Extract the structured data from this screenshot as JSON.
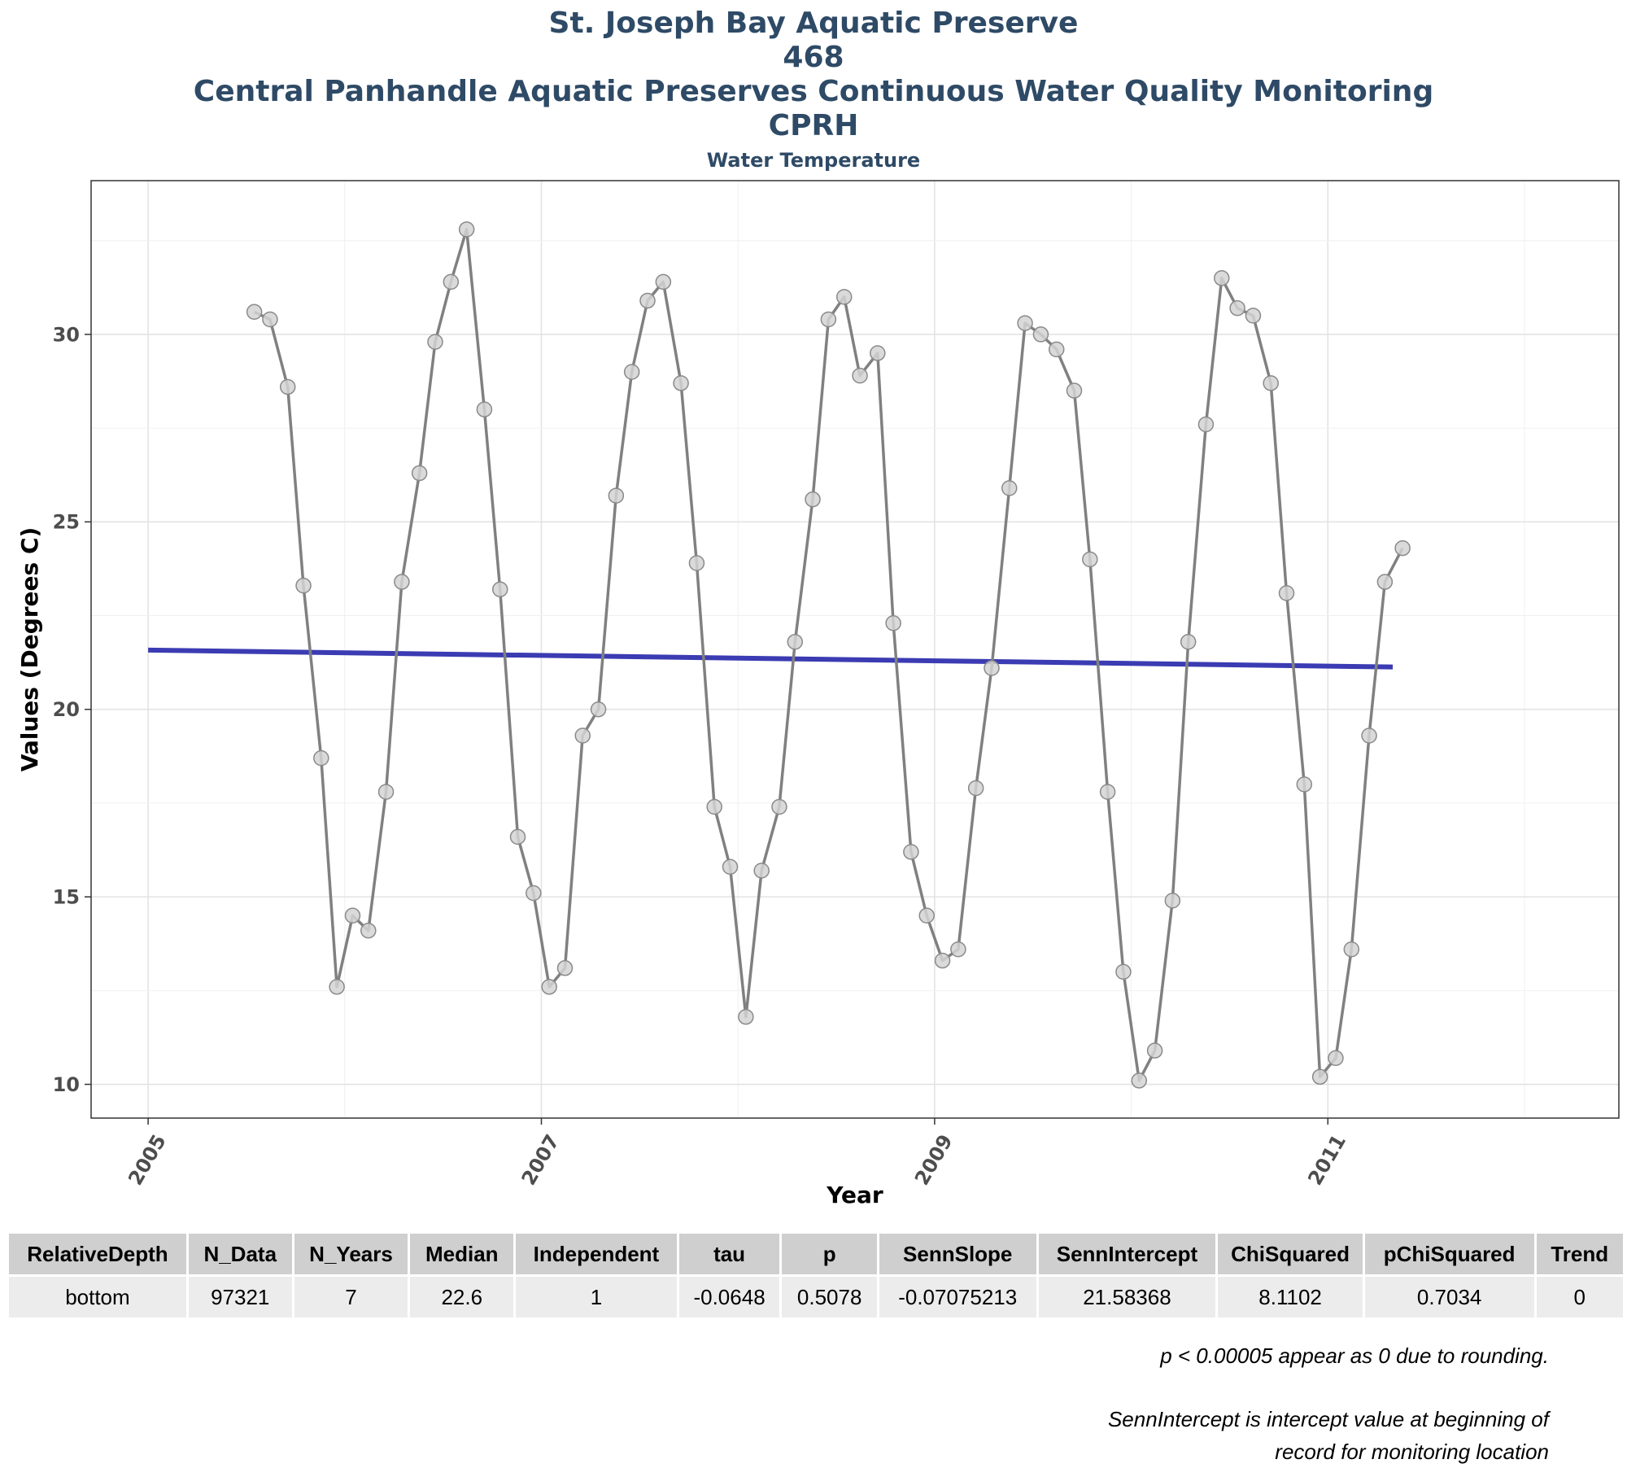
{
  "header": {
    "title_lines": [
      "St. Joseph Bay Aquatic Preserve",
      "468",
      "Central Panhandle Aquatic Preserves Continuous Water Quality Monitoring",
      "CPRH"
    ],
    "subtitle": "Water Temperature"
  },
  "chart_data": {
    "type": "line",
    "xlabel": "Year",
    "ylabel": "Values (Degrees C)",
    "xlim": [
      2004.71,
      2012.48
    ],
    "ylim": [
      9.1,
      34.1
    ],
    "x_ticks": [
      "2005",
      "2007",
      "2009",
      "2011"
    ],
    "y_ticks": [
      "10",
      "15",
      "20",
      "25",
      "30"
    ],
    "grid": true,
    "series": [
      {
        "color": "#808080",
        "points": [
          [
            2005.54,
            30.6
          ],
          [
            2005.62,
            30.4
          ],
          [
            2005.71,
            28.6
          ],
          [
            2005.79,
            23.3
          ],
          [
            2005.88,
            18.7
          ],
          [
            2005.96,
            12.6
          ],
          [
            2006.04,
            14.5
          ],
          [
            2006.12,
            14.1
          ],
          [
            2006.21,
            17.8
          ],
          [
            2006.29,
            23.4
          ],
          [
            2006.38,
            26.3
          ],
          [
            2006.46,
            29.8
          ],
          [
            2006.54,
            31.4
          ],
          [
            2006.62,
            32.8
          ],
          [
            2006.71,
            28.0
          ],
          [
            2006.79,
            23.2
          ],
          [
            2006.88,
            16.6
          ],
          [
            2006.96,
            15.1
          ],
          [
            2007.04,
            12.6
          ],
          [
            2007.12,
            13.1
          ],
          [
            2007.21,
            19.3
          ],
          [
            2007.29,
            20.0
          ],
          [
            2007.38,
            25.7
          ],
          [
            2007.46,
            29.0
          ],
          [
            2007.54,
            30.9
          ],
          [
            2007.62,
            31.4
          ],
          [
            2007.71,
            28.7
          ],
          [
            2007.79,
            23.9
          ],
          [
            2007.88,
            17.4
          ],
          [
            2007.96,
            15.8
          ],
          [
            2008.04,
            11.8
          ],
          [
            2008.12,
            15.7
          ],
          [
            2008.21,
            17.4
          ],
          [
            2008.29,
            21.8
          ],
          [
            2008.38,
            25.6
          ],
          [
            2008.46,
            30.4
          ],
          [
            2008.54,
            31.0
          ],
          [
            2008.62,
            28.9
          ],
          [
            2008.71,
            29.5
          ],
          [
            2008.79,
            22.3
          ],
          [
            2008.88,
            16.2
          ],
          [
            2008.96,
            14.5
          ],
          [
            2009.04,
            13.3
          ],
          [
            2009.12,
            13.6
          ],
          [
            2009.21,
            17.9
          ],
          [
            2009.29,
            21.1
          ],
          [
            2009.38,
            25.9
          ],
          [
            2009.46,
            30.3
          ],
          [
            2009.54,
            30.0
          ],
          [
            2009.62,
            29.6
          ],
          [
            2009.71,
            28.5
          ],
          [
            2009.79,
            24.0
          ],
          [
            2009.88,
            17.8
          ],
          [
            2009.96,
            13.0
          ],
          [
            2010.04,
            10.1
          ],
          [
            2010.12,
            10.9
          ],
          [
            2010.21,
            14.9
          ],
          [
            2010.29,
            21.8
          ],
          [
            2010.38,
            27.6
          ],
          [
            2010.46,
            31.5
          ],
          [
            2010.54,
            30.7
          ],
          [
            2010.62,
            30.5
          ],
          [
            2010.71,
            28.7
          ],
          [
            2010.79,
            23.1
          ],
          [
            2010.88,
            18.0
          ],
          [
            2010.96,
            10.2
          ],
          [
            2011.04,
            10.7
          ],
          [
            2011.12,
            13.6
          ],
          [
            2011.21,
            19.3
          ],
          [
            2011.29,
            23.4
          ],
          [
            2011.38,
            24.3
          ]
        ]
      },
      {
        "color": "#3b3bb3",
        "points": [
          [
            2005.0,
            21.58
          ],
          [
            2011.33,
            21.13
          ]
        ]
      }
    ]
  },
  "table": {
    "columns": [
      "RelativeDepth",
      "N_Data",
      "N_Years",
      "Median",
      "Independent",
      "tau",
      "p",
      "SennSlope",
      "SennIntercept",
      "ChiSquared",
      "pChiSquared",
      "Trend"
    ],
    "rows": [
      [
        "bottom",
        "97321",
        "7",
        "22.6",
        "1",
        "-0.0648",
        "0.5078",
        "-0.07075213",
        "21.58368",
        "8.1102",
        "0.7034",
        "0"
      ]
    ]
  },
  "notes": {
    "rounding": "p < 0.00005 appear as 0 due to rounding.",
    "intercept_line1": "SennIntercept is intercept value at beginning of",
    "intercept_line2": "record for monitoring location"
  },
  "colors": {
    "title": "#2e4a66",
    "series_line": "#808080",
    "trend_line": "#3b3bb3",
    "point_fill": "#d3d3d3",
    "header_bg": "#cfcfcf",
    "row_bg": "#ececec"
  }
}
